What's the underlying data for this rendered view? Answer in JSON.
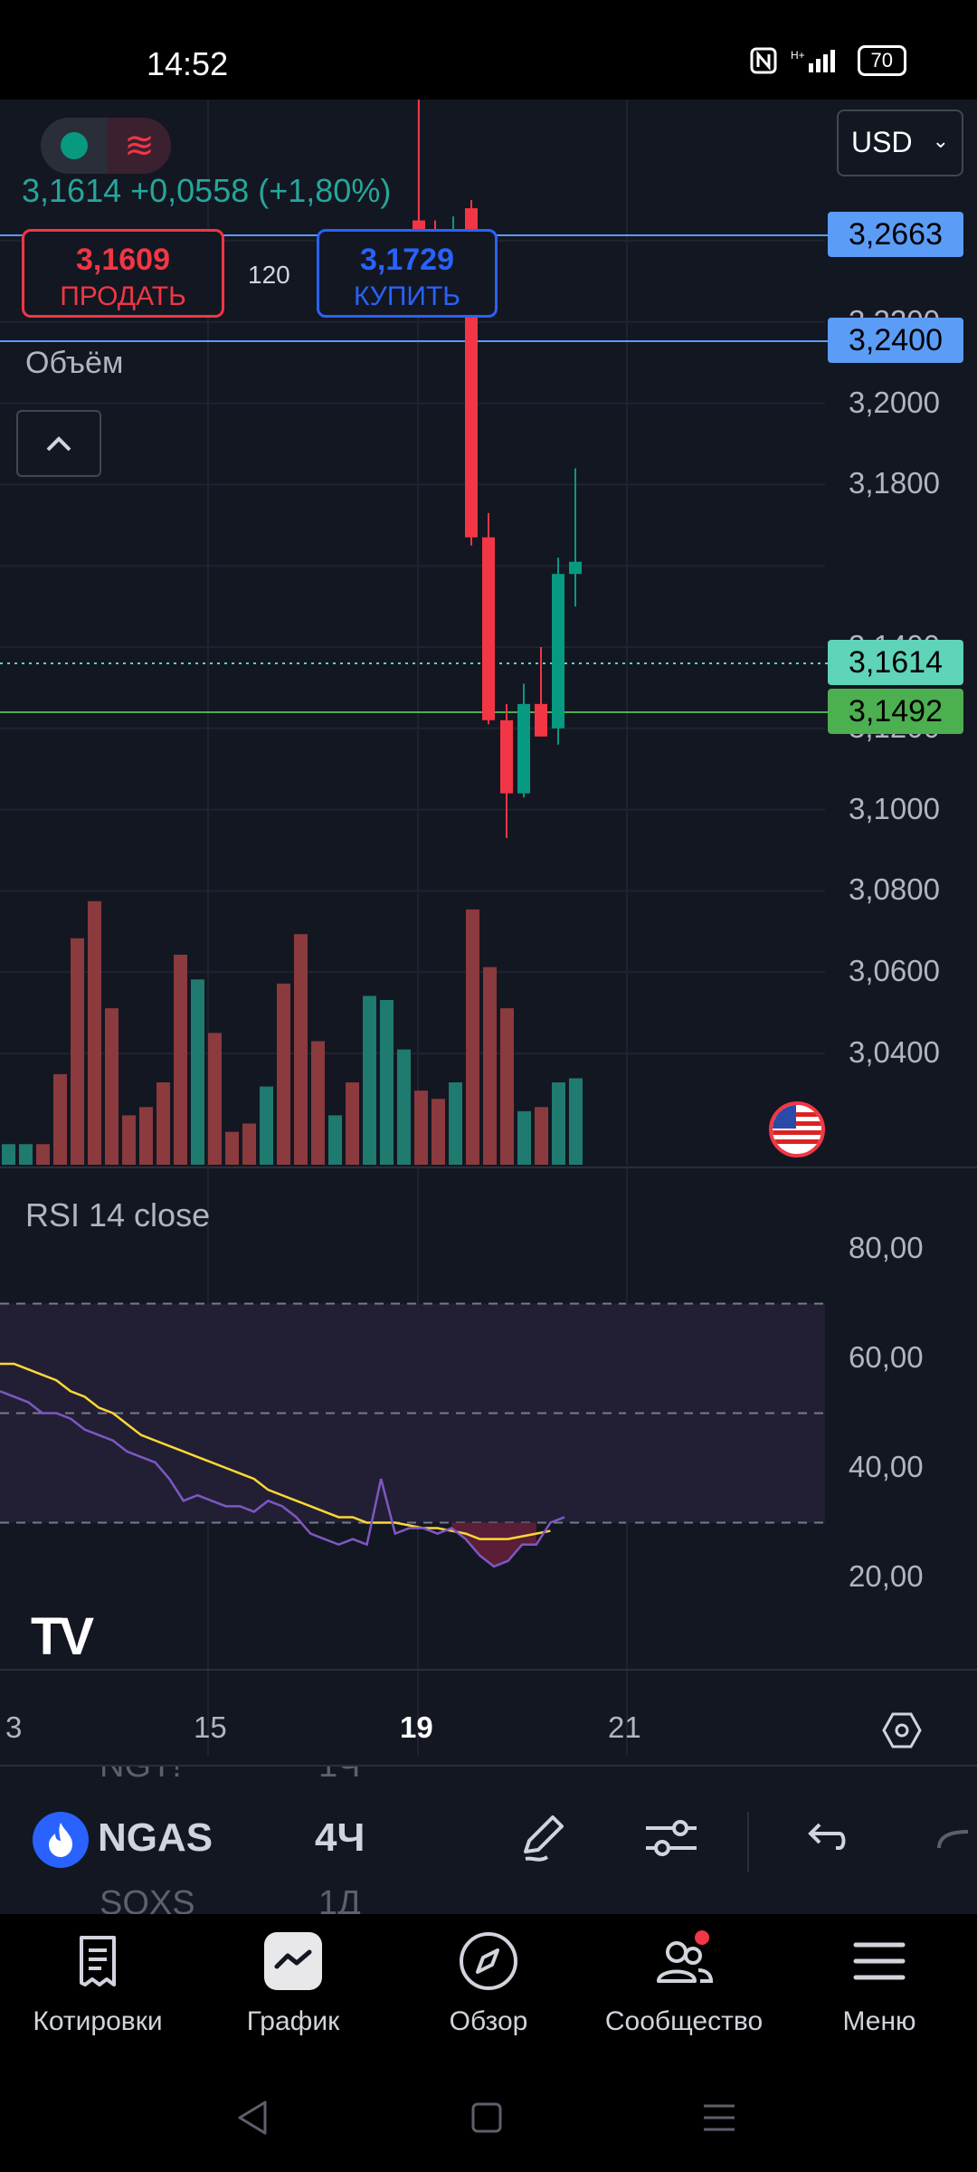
{
  "status_bar": {
    "time": "14:52",
    "battery": "70"
  },
  "header": {
    "quote": "3,1614  +0,0558 (+1,80%)",
    "currency": "USD",
    "sell_price": "3,1609",
    "sell_label": "ПРОДАТЬ",
    "spread": "120",
    "buy_price": "3,1729",
    "buy_label": "КУПИТЬ",
    "volume_label": "Объём"
  },
  "price_scale": {
    "labels": [
      "3,2200",
      "3,2000",
      "3,1800",
      "3,1400",
      "3,1200",
      "3,1000",
      "3,0800",
      "3,0600",
      "3,0400"
    ],
    "tags": [
      {
        "text": "3,2663",
        "color": "#5b9cf6"
      },
      {
        "text": "3,2400",
        "color": "#5b9cf6"
      },
      {
        "text": "3,1614",
        "color": "#5fd4b8"
      },
      {
        "text": "3,1492",
        "color": "#4caf50"
      }
    ]
  },
  "rsi": {
    "label": "RSI 14 close",
    "scale_labels": [
      "80,00",
      "60,00",
      "40,00",
      "20,00"
    ]
  },
  "time_axis": {
    "labels": [
      "3",
      "15",
      "19",
      "21"
    ]
  },
  "toolbar": {
    "symbol": "NGAS",
    "timeframe": "4Ч",
    "ghost_prev_symbol": "NGT!",
    "ghost_prev_tf": "1Ч",
    "ghost_next_symbol": "SOXS",
    "ghost_next_tf": "1Д"
  },
  "nav": {
    "quotes": "Котировки",
    "chart": "График",
    "overview": "Обзор",
    "community": "Сообщество",
    "menu": "Меню"
  },
  "colors": {
    "bull": "#089981",
    "bear": "#f23645",
    "rsi": "#7e57c2",
    "rsi_ma": "#fdd835",
    "background": "#131722"
  },
  "chart_data": {
    "type": "candlestick",
    "symbol": "NGAS",
    "timeframe": "4Ч",
    "ylim": [
      3.04,
      3.23
    ],
    "candles": [
      {
        "o": 3.245,
        "h": 3.33,
        "l": 3.238,
        "c": 3.24
      },
      {
        "o": 3.24,
        "h": 3.245,
        "l": 3.228,
        "c": 3.236
      },
      {
        "o": 3.236,
        "h": 3.246,
        "l": 3.223,
        "c": 3.24
      },
      {
        "o": 3.24,
        "h": 3.245,
        "l": 3.23,
        "c": 3.24
      },
      {
        "o": 3.248,
        "h": 3.25,
        "l": 3.165,
        "c": 3.167
      },
      {
        "o": 3.167,
        "h": 3.173,
        "l": 3.121,
        "c": 3.122
      },
      {
        "o": 3.122,
        "h": 3.126,
        "l": 3.093,
        "c": 3.104
      },
      {
        "o": 3.104,
        "h": 3.131,
        "l": 3.103,
        "c": 3.126
      },
      {
        "o": 3.126,
        "h": 3.14,
        "l": 3.118,
        "c": 3.118
      },
      {
        "o": 3.12,
        "h": 3.162,
        "l": 3.116,
        "c": 3.158
      },
      {
        "o": 3.158,
        "h": 3.184,
        "l": 3.15,
        "c": 3.161
      }
    ],
    "volume": {
      "values": [
        5,
        5,
        5,
        22,
        55,
        64,
        38,
        12,
        14,
        20,
        51,
        45,
        32,
        8,
        10,
        19,
        44,
        56,
        30,
        12,
        20,
        41,
        40,
        28,
        18,
        16,
        20,
        62,
        48,
        38,
        13,
        14,
        20,
        21
      ],
      "up": [
        true,
        true,
        false,
        false,
        false,
        false,
        false,
        false,
        false,
        false,
        false,
        true,
        false,
        false,
        false,
        true,
        false,
        false,
        false,
        true,
        false,
        true,
        true,
        true,
        false,
        false,
        true,
        false,
        false,
        false,
        true,
        false,
        true,
        true
      ]
    },
    "rsi": {
      "period": 14,
      "ylim": [
        12,
        90
      ],
      "bands": [
        70,
        50,
        30
      ],
      "series": [
        {
          "name": "RSI",
          "values": [
            54,
            53,
            52,
            50,
            50,
            49,
            47,
            46,
            45,
            43,
            42,
            41,
            38,
            34,
            35,
            34,
            33,
            33,
            32,
            34,
            33,
            31,
            28,
            27,
            26,
            27,
            26,
            38,
            28,
            29,
            29,
            28,
            29,
            27,
            24,
            22,
            23,
            26,
            26,
            30,
            31
          ]
        },
        {
          "name": "RSI MA",
          "values": [
            59,
            59,
            58,
            57,
            56,
            54,
            53,
            51,
            50,
            48,
            46,
            45,
            44,
            43,
            42,
            41,
            40,
            39,
            38,
            36,
            35,
            34,
            33,
            32,
            31,
            31,
            30,
            30,
            30,
            29.5,
            29,
            29,
            28.5,
            28,
            27,
            27,
            27,
            27.5,
            28,
            28.5
          ]
        }
      ]
    }
  }
}
